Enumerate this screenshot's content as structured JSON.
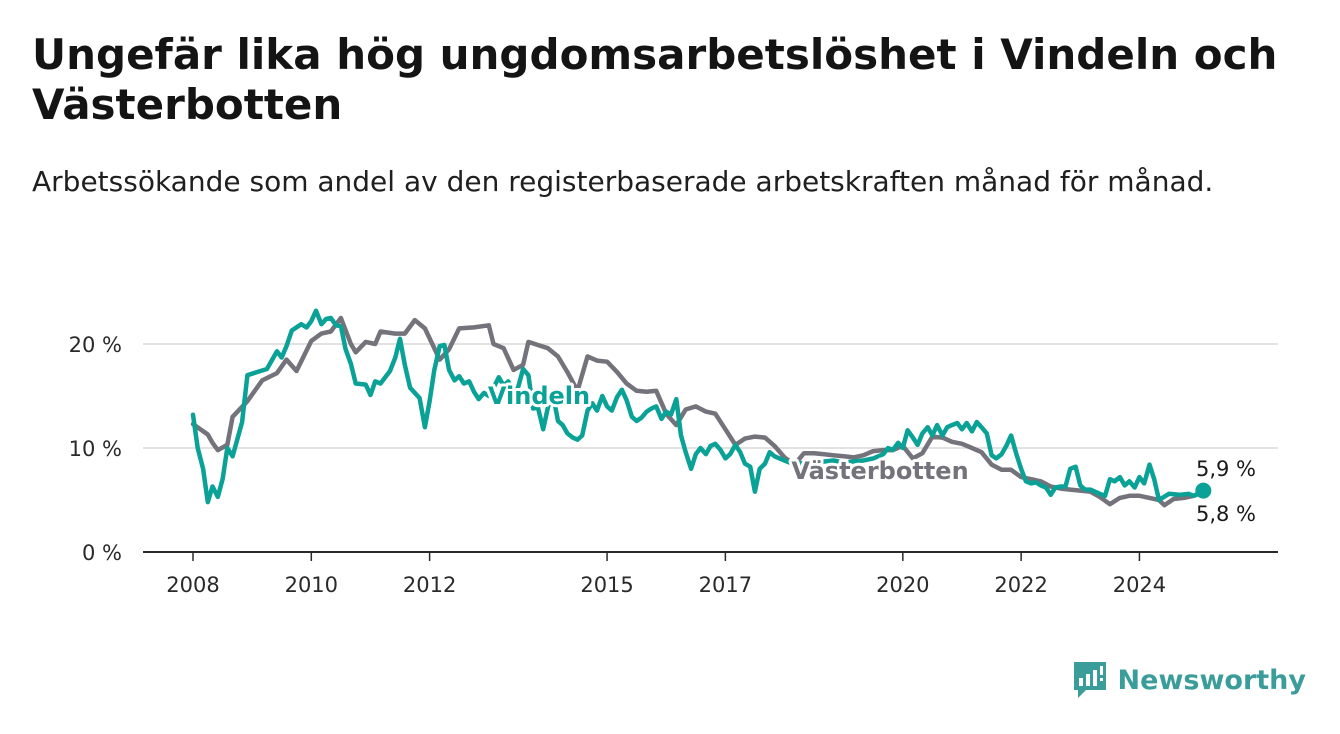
{
  "header": {
    "title": "Ungefär lika hög ungdomsarbetslöshet i Vindeln och Västerbotten",
    "subtitle": "Arbetssökande som andel av den registerbaserade arbetskraften månad för månad."
  },
  "branding": {
    "name": "Newsworthy",
    "icon": "newsworthy-logo-icon",
    "color": "#3a9d99"
  },
  "chart_data": {
    "type": "line",
    "title": "Ungefär lika hög ungdomsarbetslöshet i Vindeln och Västerbotten",
    "subtitle": "Arbetssökande som andel av den registerbaserade arbetskraften månad för månad.",
    "xlabel": "",
    "ylabel": "",
    "x_unit": "year",
    "xlim": [
      2008,
      2025.7
    ],
    "ylim": [
      0,
      20
    ],
    "y_ticks": [
      0,
      10,
      20
    ],
    "y_tick_labels": [
      "0 %",
      "10 %",
      "20 %"
    ],
    "x_ticks": [
      2008,
      2010,
      2012,
      2015,
      2017,
      2020,
      2022,
      2024
    ],
    "x_tick_labels": [
      "2008",
      "2010",
      "2012",
      "2015",
      "2017",
      "2020",
      "2022",
      "2024"
    ],
    "grid": "horizontal",
    "legend": "direct labels on lines",
    "series": [
      {
        "name": "Västerbotten",
        "color": "#74727a",
        "end_label": "5,8 %",
        "points": [
          [
            2008.0,
            12.3
          ],
          [
            2008.25,
            11.3
          ],
          [
            2008.33,
            10.5
          ],
          [
            2008.42,
            9.8
          ],
          [
            2008.58,
            10.3
          ],
          [
            2008.67,
            13.0
          ],
          [
            2008.92,
            14.5
          ],
          [
            2009.17,
            16.5
          ],
          [
            2009.42,
            17.2
          ],
          [
            2009.58,
            18.5
          ],
          [
            2009.75,
            17.4
          ],
          [
            2010.0,
            20.3
          ],
          [
            2010.17,
            21.0
          ],
          [
            2010.33,
            21.2
          ],
          [
            2010.5,
            22.5
          ],
          [
            2010.67,
            20.0
          ],
          [
            2010.75,
            19.2
          ],
          [
            2010.92,
            20.2
          ],
          [
            2011.08,
            20.0
          ],
          [
            2011.17,
            21.2
          ],
          [
            2011.42,
            21.0
          ],
          [
            2011.58,
            21.0
          ],
          [
            2011.75,
            22.3
          ],
          [
            2011.92,
            21.5
          ],
          [
            2012.17,
            18.5
          ],
          [
            2012.33,
            19.5
          ],
          [
            2012.5,
            21.5
          ],
          [
            2012.75,
            21.6
          ],
          [
            2013.0,
            21.8
          ],
          [
            2013.08,
            20.0
          ],
          [
            2013.25,
            19.6
          ],
          [
            2013.42,
            17.5
          ],
          [
            2013.58,
            18.0
          ],
          [
            2013.67,
            20.2
          ],
          [
            2013.83,
            19.9
          ],
          [
            2014.0,
            19.6
          ],
          [
            2014.17,
            18.8
          ],
          [
            2014.33,
            17.3
          ],
          [
            2014.5,
            15.5
          ],
          [
            2014.67,
            18.8
          ],
          [
            2014.83,
            18.4
          ],
          [
            2015.0,
            18.3
          ],
          [
            2015.17,
            17.3
          ],
          [
            2015.33,
            16.2
          ],
          [
            2015.5,
            15.5
          ],
          [
            2015.67,
            15.4
          ],
          [
            2015.83,
            15.5
          ],
          [
            2016.0,
            13.3
          ],
          [
            2016.17,
            12.2
          ],
          [
            2016.33,
            13.7
          ],
          [
            2016.5,
            14.0
          ],
          [
            2016.67,
            13.5
          ],
          [
            2016.83,
            13.3
          ],
          [
            2017.0,
            11.8
          ],
          [
            2017.17,
            10.3
          ],
          [
            2017.33,
            10.9
          ],
          [
            2017.5,
            11.1
          ],
          [
            2017.67,
            11.0
          ],
          [
            2017.83,
            10.2
          ],
          [
            2018.0,
            9.1
          ],
          [
            2018.17,
            8.4
          ],
          [
            2018.33,
            9.5
          ],
          [
            2018.5,
            9.5
          ],
          [
            2018.67,
            9.4
          ],
          [
            2018.83,
            9.3
          ],
          [
            2019.0,
            9.2
          ],
          [
            2019.17,
            9.1
          ],
          [
            2019.33,
            9.3
          ],
          [
            2019.5,
            9.7
          ],
          [
            2019.67,
            9.8
          ],
          [
            2019.83,
            9.8
          ],
          [
            2020.0,
            10.2
          ],
          [
            2020.17,
            9.0
          ],
          [
            2020.33,
            9.5
          ],
          [
            2020.5,
            11.1
          ],
          [
            2020.67,
            11.0
          ],
          [
            2020.83,
            10.6
          ],
          [
            2021.0,
            10.4
          ],
          [
            2021.17,
            10.0
          ],
          [
            2021.33,
            9.6
          ],
          [
            2021.5,
            8.4
          ],
          [
            2021.67,
            7.9
          ],
          [
            2021.83,
            7.9
          ],
          [
            2022.0,
            7.2
          ],
          [
            2022.17,
            7.0
          ],
          [
            2022.33,
            6.8
          ],
          [
            2022.5,
            6.3
          ],
          [
            2022.67,
            6.1
          ],
          [
            2022.83,
            6.0
          ],
          [
            2023.0,
            5.9
          ],
          [
            2023.17,
            5.8
          ],
          [
            2023.33,
            5.3
          ],
          [
            2023.5,
            4.6
          ],
          [
            2023.67,
            5.2
          ],
          [
            2023.83,
            5.4
          ],
          [
            2024.0,
            5.4
          ],
          [
            2024.17,
            5.2
          ],
          [
            2024.33,
            5.0
          ],
          [
            2024.42,
            4.5
          ],
          [
            2024.58,
            5.1
          ],
          [
            2024.75,
            5.2
          ],
          [
            2024.92,
            5.4
          ],
          [
            2025.1,
            5.8
          ]
        ]
      },
      {
        "name": "Vindeln",
        "color": "#0aa197",
        "end_label": "5,9 %",
        "points": [
          [
            2008.0,
            13.2
          ],
          [
            2008.08,
            10.0
          ],
          [
            2008.17,
            8.0
          ],
          [
            2008.25,
            4.8
          ],
          [
            2008.33,
            6.3
          ],
          [
            2008.42,
            5.3
          ],
          [
            2008.5,
            7.0
          ],
          [
            2008.58,
            10.0
          ],
          [
            2008.67,
            9.2
          ],
          [
            2008.83,
            12.5
          ],
          [
            2008.92,
            17.0
          ],
          [
            2009.08,
            17.3
          ],
          [
            2009.25,
            17.6
          ],
          [
            2009.42,
            19.3
          ],
          [
            2009.5,
            18.7
          ],
          [
            2009.58,
            19.8
          ],
          [
            2009.67,
            21.3
          ],
          [
            2009.83,
            21.9
          ],
          [
            2009.92,
            21.6
          ],
          [
            2010.0,
            22.2
          ],
          [
            2010.08,
            23.2
          ],
          [
            2010.17,
            21.9
          ],
          [
            2010.25,
            22.4
          ],
          [
            2010.33,
            22.5
          ],
          [
            2010.42,
            21.8
          ],
          [
            2010.5,
            21.7
          ],
          [
            2010.58,
            19.5
          ],
          [
            2010.67,
            18.1
          ],
          [
            2010.75,
            16.2
          ],
          [
            2010.92,
            16.1
          ],
          [
            2011.0,
            15.1
          ],
          [
            2011.08,
            16.4
          ],
          [
            2011.17,
            16.2
          ],
          [
            2011.33,
            17.4
          ],
          [
            2011.42,
            18.7
          ],
          [
            2011.5,
            20.5
          ],
          [
            2011.58,
            18.0
          ],
          [
            2011.67,
            15.8
          ],
          [
            2011.83,
            14.8
          ],
          [
            2011.92,
            12.0
          ],
          [
            2012.0,
            14.5
          ],
          [
            2012.08,
            17.5
          ],
          [
            2012.17,
            19.8
          ],
          [
            2012.25,
            19.9
          ],
          [
            2012.33,
            17.5
          ],
          [
            2012.42,
            16.5
          ],
          [
            2012.5,
            16.9
          ],
          [
            2012.58,
            16.2
          ],
          [
            2012.67,
            16.4
          ],
          [
            2012.75,
            15.4
          ],
          [
            2012.83,
            14.7
          ],
          [
            2012.92,
            15.3
          ],
          [
            2013.0,
            15.0
          ],
          [
            2013.08,
            15.8
          ],
          [
            2013.17,
            16.8
          ],
          [
            2013.25,
            16.0
          ],
          [
            2013.33,
            16.4
          ],
          [
            2013.42,
            15.0
          ],
          [
            2013.5,
            15.9
          ],
          [
            2013.58,
            17.6
          ],
          [
            2013.67,
            17.0
          ],
          [
            2013.75,
            13.8
          ],
          [
            2013.83,
            13.9
          ],
          [
            2013.92,
            11.8
          ],
          [
            2014.0,
            13.9
          ],
          [
            2014.08,
            15.3
          ],
          [
            2014.17,
            12.6
          ],
          [
            2014.25,
            12.2
          ],
          [
            2014.33,
            11.4
          ],
          [
            2014.42,
            11.0
          ],
          [
            2014.5,
            10.8
          ],
          [
            2014.58,
            11.2
          ],
          [
            2014.67,
            13.6
          ],
          [
            2014.75,
            14.3
          ],
          [
            2014.83,
            13.6
          ],
          [
            2014.92,
            15.0
          ],
          [
            2015.0,
            14.0
          ],
          [
            2015.08,
            13.6
          ],
          [
            2015.17,
            14.9
          ],
          [
            2015.25,
            15.6
          ],
          [
            2015.33,
            14.6
          ],
          [
            2015.42,
            13.0
          ],
          [
            2015.5,
            12.6
          ],
          [
            2015.58,
            12.9
          ],
          [
            2015.67,
            13.5
          ],
          [
            2015.75,
            13.8
          ],
          [
            2015.83,
            14.0
          ],
          [
            2015.92,
            12.8
          ],
          [
            2016.0,
            13.5
          ],
          [
            2016.08,
            13.2
          ],
          [
            2016.17,
            14.7
          ],
          [
            2016.25,
            11.2
          ],
          [
            2016.33,
            9.6
          ],
          [
            2016.42,
            8.0
          ],
          [
            2016.5,
            9.4
          ],
          [
            2016.58,
            10.0
          ],
          [
            2016.67,
            9.4
          ],
          [
            2016.75,
            10.2
          ],
          [
            2016.83,
            10.4
          ],
          [
            2016.92,
            9.8
          ],
          [
            2017.0,
            9.0
          ],
          [
            2017.08,
            9.4
          ],
          [
            2017.17,
            10.3
          ],
          [
            2017.25,
            9.6
          ],
          [
            2017.33,
            8.5
          ],
          [
            2017.42,
            8.2
          ],
          [
            2017.5,
            5.8
          ],
          [
            2017.58,
            8.0
          ],
          [
            2017.67,
            8.5
          ],
          [
            2017.75,
            9.6
          ],
          [
            2017.83,
            9.2
          ],
          [
            2018.0,
            8.8
          ],
          [
            2018.17,
            8.4
          ],
          [
            2018.33,
            8.6
          ],
          [
            2018.5,
            8.5
          ],
          [
            2018.67,
            8.7
          ],
          [
            2018.83,
            8.8
          ],
          [
            2019.0,
            8.6
          ],
          [
            2019.17,
            8.7
          ],
          [
            2019.33,
            8.8
          ],
          [
            2019.5,
            9.0
          ],
          [
            2019.67,
            9.4
          ],
          [
            2019.75,
            10.0
          ],
          [
            2019.83,
            9.8
          ],
          [
            2019.92,
            10.5
          ],
          [
            2020.0,
            10.0
          ],
          [
            2020.08,
            11.7
          ],
          [
            2020.17,
            11.0
          ],
          [
            2020.25,
            10.3
          ],
          [
            2020.33,
            11.4
          ],
          [
            2020.42,
            12.0
          ],
          [
            2020.5,
            11.2
          ],
          [
            2020.58,
            12.2
          ],
          [
            2020.67,
            11.2
          ],
          [
            2020.75,
            12.0
          ],
          [
            2020.83,
            12.2
          ],
          [
            2020.92,
            12.4
          ],
          [
            2021.0,
            11.8
          ],
          [
            2021.08,
            12.4
          ],
          [
            2021.17,
            11.6
          ],
          [
            2021.25,
            12.5
          ],
          [
            2021.33,
            12.0
          ],
          [
            2021.42,
            11.4
          ],
          [
            2021.5,
            9.3
          ],
          [
            2021.58,
            9.0
          ],
          [
            2021.67,
            9.4
          ],
          [
            2021.75,
            10.2
          ],
          [
            2021.83,
            11.2
          ],
          [
            2021.92,
            9.4
          ],
          [
            2022.0,
            8.0
          ],
          [
            2022.08,
            6.8
          ],
          [
            2022.17,
            6.6
          ],
          [
            2022.25,
            6.7
          ],
          [
            2022.33,
            6.4
          ],
          [
            2022.42,
            6.2
          ],
          [
            2022.5,
            5.5
          ],
          [
            2022.58,
            6.2
          ],
          [
            2022.67,
            6.3
          ],
          [
            2022.75,
            6.3
          ],
          [
            2022.83,
            8.0
          ],
          [
            2022.92,
            8.2
          ],
          [
            2023.0,
            6.4
          ],
          [
            2023.08,
            6.0
          ],
          [
            2023.17,
            6.0
          ],
          [
            2023.25,
            5.8
          ],
          [
            2023.33,
            5.6
          ],
          [
            2023.42,
            5.4
          ],
          [
            2023.5,
            7.0
          ],
          [
            2023.58,
            6.8
          ],
          [
            2023.67,
            7.2
          ],
          [
            2023.75,
            6.4
          ],
          [
            2023.83,
            6.8
          ],
          [
            2023.92,
            6.2
          ],
          [
            2024.0,
            7.2
          ],
          [
            2024.08,
            6.6
          ],
          [
            2024.17,
            8.4
          ],
          [
            2024.25,
            7.0
          ],
          [
            2024.33,
            5.0
          ],
          [
            2024.5,
            5.6
          ],
          [
            2024.67,
            5.5
          ],
          [
            2024.83,
            5.6
          ],
          [
            2024.92,
            5.4
          ],
          [
            2025.08,
            5.9
          ]
        ]
      }
    ]
  }
}
